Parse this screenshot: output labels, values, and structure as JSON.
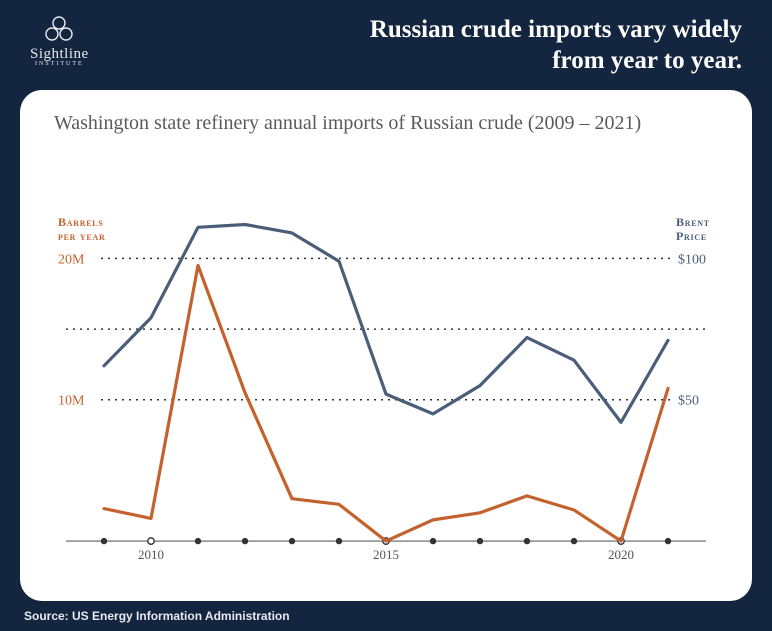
{
  "theme": {
    "page_bg": "#14263f",
    "card_bg": "#ffffff",
    "card_radius": 22,
    "headline_color": "#ffffff",
    "source_color": "#e6e9ee",
    "logo_color": "#e6e9ee"
  },
  "logo": {
    "name": "Sightline",
    "subline": "INSTITUTE",
    "name_fontsize": 15,
    "subline_fontsize": 6
  },
  "headline": {
    "line1": "Russian crude imports vary widely",
    "line2": "from year to year.",
    "fontsize": 25
  },
  "chart": {
    "title": "Washington state refinery annual imports of Russian crude (2009 – 2021)",
    "title_fontsize": 20,
    "title_color": "#5a5a5a",
    "type": "dual-axis-line",
    "years": [
      2009,
      2010,
      2011,
      2012,
      2013,
      2014,
      2015,
      2016,
      2017,
      2018,
      2019,
      2020,
      2021
    ],
    "x_axis": {
      "tick_years": [
        2009,
        2010,
        2011,
        2012,
        2013,
        2014,
        2015,
        2016,
        2017,
        2018,
        2019,
        2020,
        2021
      ],
      "label_years": [
        2010,
        2015,
        2020
      ],
      "hollow_years": [
        2010,
        2015,
        2020
      ],
      "tick_radius": 3.2,
      "tick_fill": "#333333",
      "hollow_stroke": "#333333",
      "hollow_fill": "#ffffff",
      "axis_stroke": "#333333",
      "axis_width": 0.8,
      "label_fontsize": 13,
      "label_color": "#555555"
    },
    "left_axis": {
      "label1": "Barrels",
      "label2": "per year",
      "label_color": "#c4622d",
      "label_fontsize": 12,
      "min": 0,
      "max": 24,
      "grid_values": [
        10,
        15,
        20
      ],
      "tick_labels": [
        {
          "value": 10,
          "text": "10M"
        },
        {
          "value": 20,
          "text": "20M"
        }
      ],
      "tick_fontsize": 14
    },
    "right_axis": {
      "label": "Brent",
      "label2": "Price",
      "label_color": "#4a5e7a",
      "label_fontsize": 12,
      "min": 0,
      "max": 120,
      "tick_labels": [
        {
          "value": 50,
          "text": "$50"
        },
        {
          "value": 100,
          "text": "$100"
        }
      ],
      "tick_fontsize": 14
    },
    "grid": {
      "stroke": "#333333",
      "dash": "2 5",
      "width": 1.5
    },
    "series": [
      {
        "name": "barrels_per_year_M",
        "axis": "left",
        "color": "#c4622d",
        "width": 3.2,
        "data": [
          2.3,
          1.6,
          19.5,
          10.5,
          3.0,
          2.6,
          0.0,
          1.5,
          2.0,
          3.2,
          2.2,
          0.0,
          10.8
        ]
      },
      {
        "name": "brent_price_usd",
        "axis": "right",
        "color": "#4a5e7a",
        "width": 3.2,
        "data": [
          62,
          79,
          111,
          112,
          109,
          99,
          52,
          45,
          55,
          72,
          64,
          42,
          71
        ]
      }
    ]
  },
  "source": {
    "label": "Source: US Energy Information Administration",
    "fontsize": 12
  }
}
